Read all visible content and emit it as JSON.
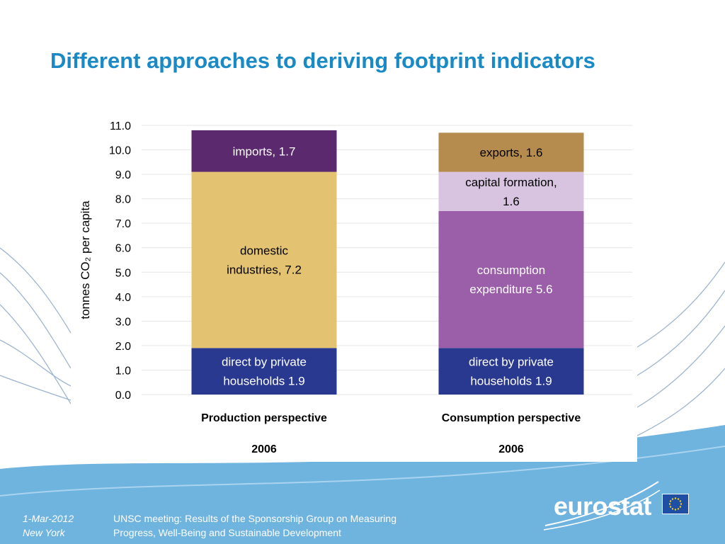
{
  "title": "Different approaches to deriving footprint indicators",
  "footer": {
    "date": "1-Mar-2012",
    "place": "New York",
    "meeting_line1": "UNSC meeting: Results of the Sponsorship Group on Measuring",
    "meeting_line2": "Progress, Well-Being and Sustainable Development"
  },
  "logo": {
    "text": "eurostat",
    "flag_icon": "eu-flag-icon"
  },
  "colors": {
    "title": "#1a8ac6",
    "background_band": "#6fb3df",
    "households": "#2a3990",
    "domestic_industries": "#e3c272",
    "imports": "#5b2a6e",
    "consumption_expenditure": "#9a5fa8",
    "capital_formation": "#d8c3e0",
    "exports": "#b68b4e"
  },
  "chart_data": {
    "type": "bar",
    "stacked": true,
    "ylabel": "tonnes CO₂ per capita",
    "ylim": [
      0,
      11
    ],
    "yticks": [
      "0.0",
      "1.0",
      "2.0",
      "3.0",
      "4.0",
      "5.0",
      "6.0",
      "7.0",
      "8.0",
      "9.0",
      "10.0",
      "11.0"
    ],
    "grid": true,
    "categories": [
      {
        "name": "Production perspective",
        "year": "2006"
      },
      {
        "name": "Consumption perspective",
        "year": "2006"
      }
    ],
    "stacks": [
      [
        {
          "lines": [
            "direct by private",
            "households    1.9"
          ],
          "value": 1.9,
          "color_key": "households",
          "text_color": "#ffffff"
        },
        {
          "lines": [
            "domestic",
            "industries,    7.2"
          ],
          "value": 7.2,
          "color_key": "domestic_industries",
          "text_color": "#000000"
        },
        {
          "lines": [
            "imports,    1.7"
          ],
          "value": 1.7,
          "color_key": "imports",
          "text_color": "#ffffff"
        }
      ],
      [
        {
          "lines": [
            "direct by private",
            "households    1.9"
          ],
          "value": 1.9,
          "color_key": "households",
          "text_color": "#ffffff"
        },
        {
          "lines": [
            "consumption",
            "expenditure   5.6"
          ],
          "value": 5.6,
          "color_key": "consumption_expenditure",
          "text_color": "#ffffff"
        },
        {
          "lines": [
            "capital formation,",
            "1.6"
          ],
          "value": 1.6,
          "color_key": "capital_formation",
          "text_color": "#000000"
        },
        {
          "lines": [
            "exports,    1.6"
          ],
          "value": 1.6,
          "color_key": "exports",
          "text_color": "#000000"
        }
      ]
    ]
  }
}
